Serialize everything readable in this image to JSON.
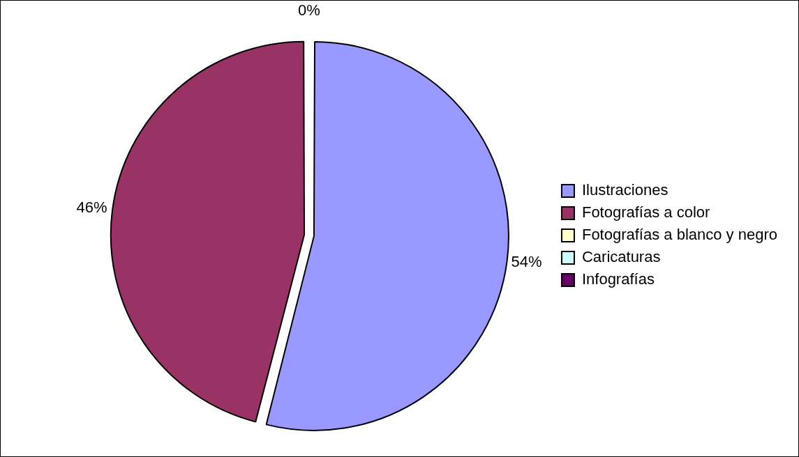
{
  "chart_data": {
    "type": "pie",
    "categories": [
      "Ilustraciones",
      "Fotografías a color",
      "Fotografías a blanco y negro",
      "Caricaturas",
      "Infografías"
    ],
    "values": [
      54,
      46,
      0,
      0,
      0
    ],
    "colors": [
      "#9999ff",
      "#993366",
      "#ffffcc",
      "#ccffff",
      "#660066"
    ],
    "value_labels": [
      "54%",
      "46%",
      "0%",
      null,
      null
    ],
    "legend": "right"
  }
}
